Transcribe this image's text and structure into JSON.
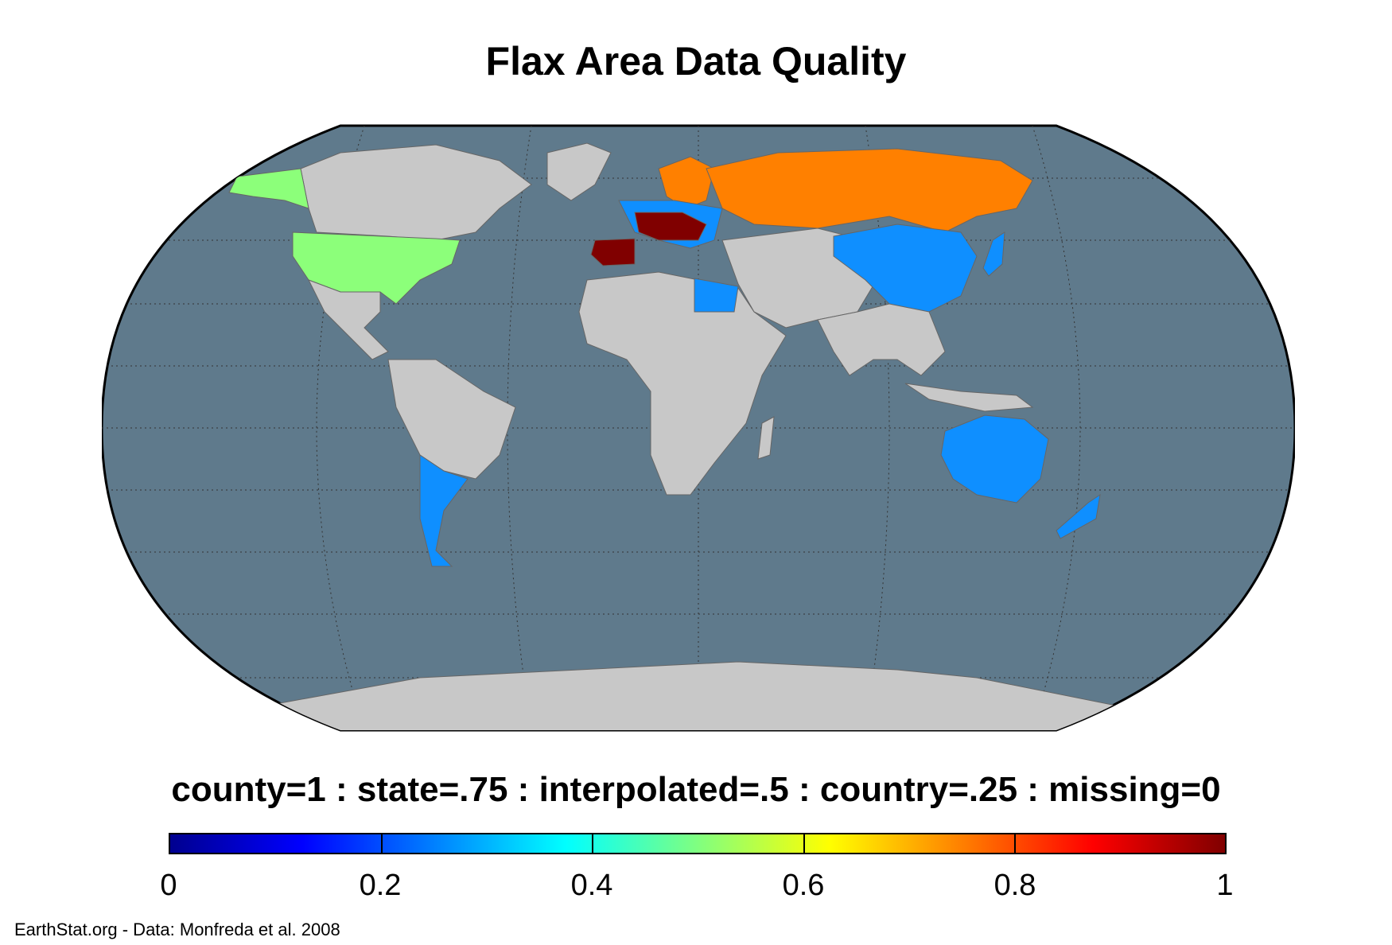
{
  "title": "Flax Area Data Quality",
  "legend_caption": "county=1 : state=.75 : interpolated=.5 : country=.25 : missing=0",
  "colorbar": {
    "min": 0,
    "max": 1,
    "ticks": [
      "0",
      "0.2",
      "0.4",
      "0.6",
      "0.8",
      "1"
    ],
    "colormap": "jet"
  },
  "credit": "EarthStat.org - Data: Monfreda et al. 2008",
  "colors": {
    "ocean": "#5f7a8c",
    "land_missing": "#c8c8c8",
    "country": "#0f8fff",
    "interpolated": "#8cff7a",
    "state": "#ff8000",
    "county": "#800000"
  },
  "map_data": {
    "projection": "Robinson",
    "regions": [
      {
        "name": "Alaska",
        "quality": 0.5
      },
      {
        "name": "United States",
        "quality": 0.5
      },
      {
        "name": "Argentina",
        "quality": 0.25
      },
      {
        "name": "Egypt",
        "quality": 0.25
      },
      {
        "name": "China",
        "quality": 0.25
      },
      {
        "name": "Japan",
        "quality": 0.25
      },
      {
        "name": "Australia",
        "quality": 0.25
      },
      {
        "name": "New Zealand",
        "quality": 0.25
      },
      {
        "name": "Russia",
        "quality": 0.75
      },
      {
        "name": "Scandinavia",
        "quality": 0.75
      },
      {
        "name": "Spain",
        "quality": 1
      },
      {
        "name": "France",
        "quality": 1
      },
      {
        "name": "Central Europe",
        "quality": 1
      }
    ]
  }
}
